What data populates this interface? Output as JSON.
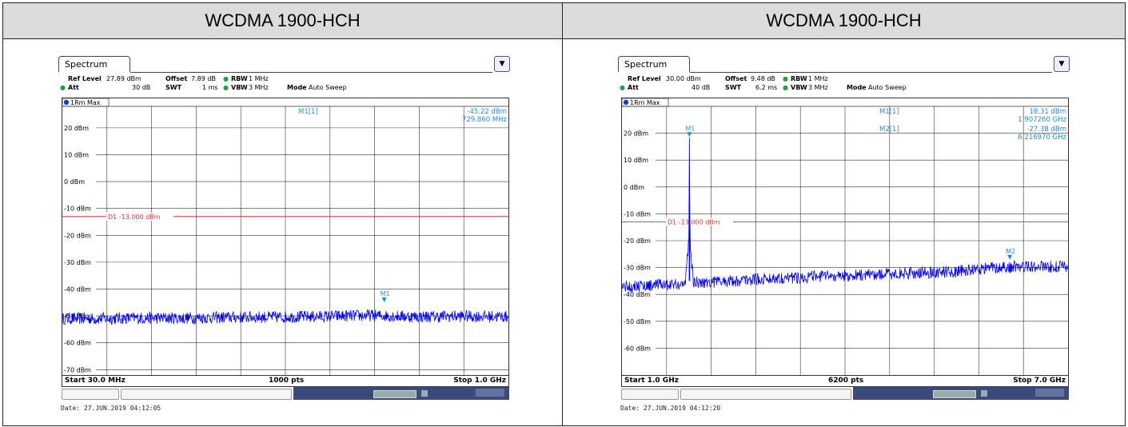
{
  "panels": [
    {
      "header": "WCDMA 1900-HCH",
      "tab": "Spectrum",
      "params": {
        "ref_label": "Ref Level",
        "ref_value": "27.89 dBm",
        "offset_label": "Offset",
        "offset_value": "7.89 dB",
        "rbw_label": "RBW",
        "rbw_value": "1 MHz",
        "att_label": "Att",
        "att_value": "30 dB",
        "swt_label": "SWT",
        "swt_value": "1 ms",
        "vbw_label": "VBW",
        "vbw_value": "3 MHz",
        "mode_label": "Mode",
        "mode_value": "Auto Sweep"
      },
      "trace_label": "1Rm Max",
      "marker_readout": [
        {
          "name": "M1[1]",
          "value": "-45.22 dBm",
          "freq": "729.860 MHz"
        }
      ],
      "start": "Start 30.0 MHz",
      "points": "1000 pts",
      "stop": "Stop 1.0 GHz",
      "date": "Date: 27.JUN.2019  04:12:05",
      "colors": {
        "trace": "#0000e6",
        "limit": "#e03030",
        "marker": "#1c8fd6"
      }
    },
    {
      "header": "WCDMA 1900-HCH",
      "tab": "Spectrum",
      "params": {
        "ref_label": "Ref Level",
        "ref_value": "30.00 dBm",
        "offset_label": "Offset",
        "offset_value": "9.48 dB",
        "rbw_label": "RBW",
        "rbw_value": "1 MHz",
        "att_label": "Att",
        "att_value": "40 dB",
        "swt_label": "SWT",
        "swt_value": "6.2 ms",
        "vbw_label": "VBW",
        "vbw_value": "3 MHz",
        "mode_label": "Mode",
        "mode_value": "Auto Sweep"
      },
      "trace_label": "1Rm Max",
      "marker_readout": [
        {
          "name": "M1[1]",
          "value": "18.31 dBm",
          "freq": "1.907260 GHz"
        },
        {
          "name": "M2[1]",
          "value": "-27.38 dBm",
          "freq": "6.216970 GHz"
        }
      ],
      "start": "Start 1.0 GHz",
      "points": "6200 pts",
      "stop": "Stop 7.0 GHz",
      "date": "Date: 27.JUN.2019  04:12:20",
      "colors": {
        "trace": "#0000e6",
        "limit": "#e03030",
        "marker": "#1c8fd6"
      }
    }
  ],
  "chart_data": [
    {
      "type": "line",
      "title": "WCDMA 1900-HCH",
      "x_unit": "MHz",
      "xlim": [
        30,
        1000
      ],
      "ylim": [
        -72,
        28
      ],
      "ytick_labels": [
        "20 dBm",
        "10 dBm",
        "0 dBm",
        "-10 dBm",
        "-20 dBm",
        "-30 dBm",
        "-40 dBm",
        "-50 dBm",
        "-60 dBm",
        "-70 dBm"
      ],
      "yticks": [
        20,
        10,
        0,
        -10,
        -20,
        -30,
        -40,
        -50,
        -60,
        -70
      ],
      "grid": true,
      "limit_line": {
        "label": "D1  -13.000 dBm",
        "value": -13
      },
      "series": [
        {
          "x": [
            30,
            100,
            200,
            300,
            400,
            500,
            600,
            700,
            800,
            900,
            1000
          ],
          "y": [
            -51,
            -51,
            -50.8,
            -50.8,
            -50.5,
            -50.4,
            -50.2,
            -49.8,
            -50.3,
            -50.1,
            -50.3
          ]
        }
      ],
      "markers": [
        {
          "label": "M1",
          "x": 729.86,
          "y": -45.22
        }
      ]
    },
    {
      "type": "line",
      "title": "WCDMA 1900-HCH",
      "x_unit": "GHz",
      "xlim": [
        1.0,
        7.0
      ],
      "ylim": [
        -70,
        30
      ],
      "ytick_labels": [
        "20 dBm",
        "10 dBm",
        "0 dBm",
        "-10 dBm",
        "-20 dBm",
        "-30 dBm",
        "-40 dBm",
        "-50 dBm",
        "-60 dBm"
      ],
      "yticks": [
        20,
        10,
        0,
        -10,
        -20,
        -30,
        -40,
        -50,
        -60
      ],
      "grid": true,
      "limit_line": {
        "label": "D1  -13.000 dBm",
        "value": -13
      },
      "series": [
        {
          "x": [
            1.0,
            1.5,
            1.85,
            1.9,
            1.907,
            1.915,
            1.96,
            2.5,
            3.0,
            3.5,
            4.0,
            4.5,
            5.0,
            5.5,
            6.0,
            6.5,
            7.0
          ],
          "y": [
            -37,
            -36.5,
            -36,
            -20,
            18.31,
            -20,
            -35.5,
            -35,
            -34,
            -33.5,
            -33,
            -32.5,
            -32,
            -31.5,
            -30,
            -29.5,
            -29.8
          ]
        }
      ],
      "markers": [
        {
          "label": "M1",
          "x": 1.90726,
          "y": 18.31
        },
        {
          "label": "M2",
          "x": 6.21697,
          "y": -27.38
        }
      ]
    }
  ]
}
